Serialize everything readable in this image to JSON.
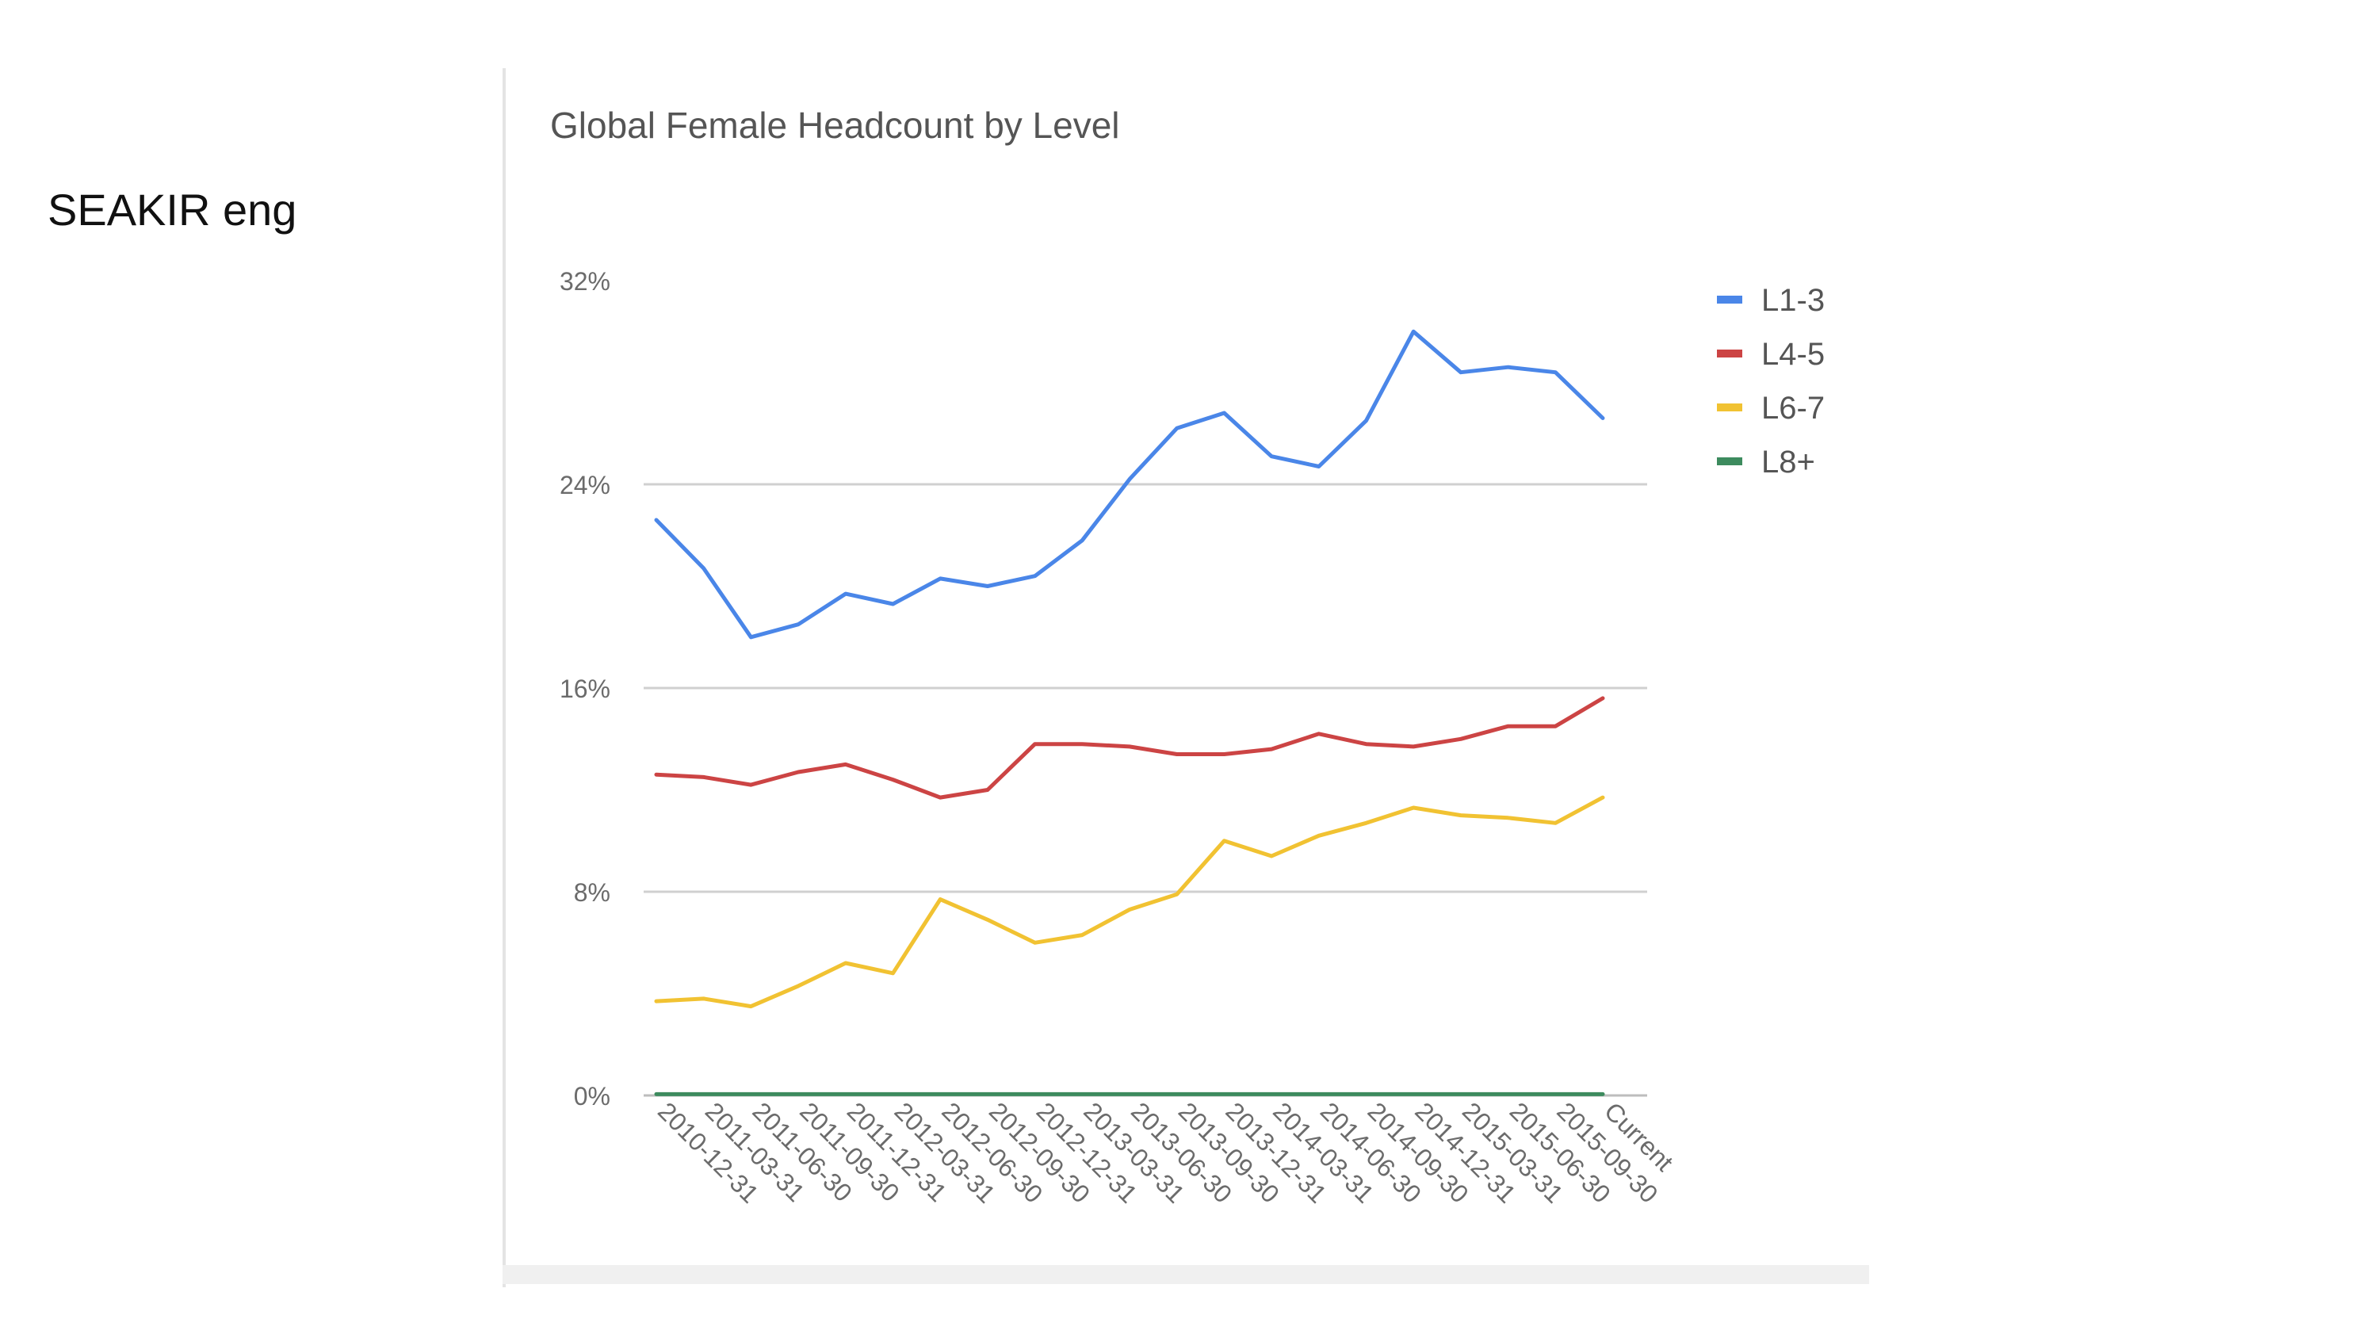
{
  "slide": {
    "label": "SEAKIR eng"
  },
  "chart_data": {
    "type": "line",
    "title": "Global Female Headcount by Level",
    "xlabel": "",
    "ylabel": "",
    "categories": [
      "2010-12-31",
      "2011-03-31",
      "2011-06-30",
      "2011-09-30",
      "2011-12-31",
      "2012-03-31",
      "2012-06-30",
      "2012-09-30",
      "2012-12-31",
      "2013-03-31",
      "2013-06-30",
      "2013-09-30",
      "2013-12-31",
      "2014-03-31",
      "2014-06-30",
      "2014-09-30",
      "2014-12-31",
      "2015-03-31",
      "2015-06-30",
      "2015-09-30",
      "Current"
    ],
    "ylim": [
      0,
      32
    ],
    "yticks": [
      {
        "value": 0,
        "label": "0%"
      },
      {
        "value": 8,
        "label": "8%"
      },
      {
        "value": 16,
        "label": "16%"
      },
      {
        "value": 24,
        "label": "24%"
      },
      {
        "value": 32,
        "label": "32%"
      }
    ],
    "grid": "horizontal",
    "legend_position": "right",
    "series": [
      {
        "name": "L1-3",
        "color": "#4a86e8",
        "values": [
          22.6,
          20.7,
          18.0,
          18.5,
          19.7,
          19.3,
          20.3,
          20.0,
          20.4,
          21.8,
          24.2,
          26.2,
          26.8,
          25.1,
          24.7,
          26.5,
          30.0,
          28.4,
          28.6,
          28.4,
          26.6
        ]
      },
      {
        "name": "L4-5",
        "color": "#cc4444",
        "values": [
          12.6,
          12.5,
          12.2,
          12.7,
          13.0,
          12.4,
          11.7,
          12.0,
          13.8,
          13.8,
          13.7,
          13.4,
          13.4,
          13.6,
          14.2,
          13.8,
          13.7,
          14.0,
          14.5,
          14.5,
          15.6
        ]
      },
      {
        "name": "L6-7",
        "color": "#f1c232",
        "values": [
          3.7,
          3.8,
          3.5,
          4.3,
          5.2,
          4.8,
          7.7,
          6.9,
          6.0,
          6.3,
          7.3,
          7.9,
          10.0,
          9.4,
          10.2,
          10.7,
          11.3,
          11.0,
          10.9,
          10.7,
          11.7
        ]
      },
      {
        "name": "L8+",
        "color": "#3d8b5e",
        "values": [
          0.05,
          0.05,
          0.05,
          0.05,
          0.05,
          0.05,
          0.05,
          0.05,
          0.05,
          0.05,
          0.05,
          0.05,
          0.05,
          0.05,
          0.05,
          0.05,
          0.05,
          0.05,
          0.05,
          0.05,
          0.05
        ]
      }
    ]
  }
}
